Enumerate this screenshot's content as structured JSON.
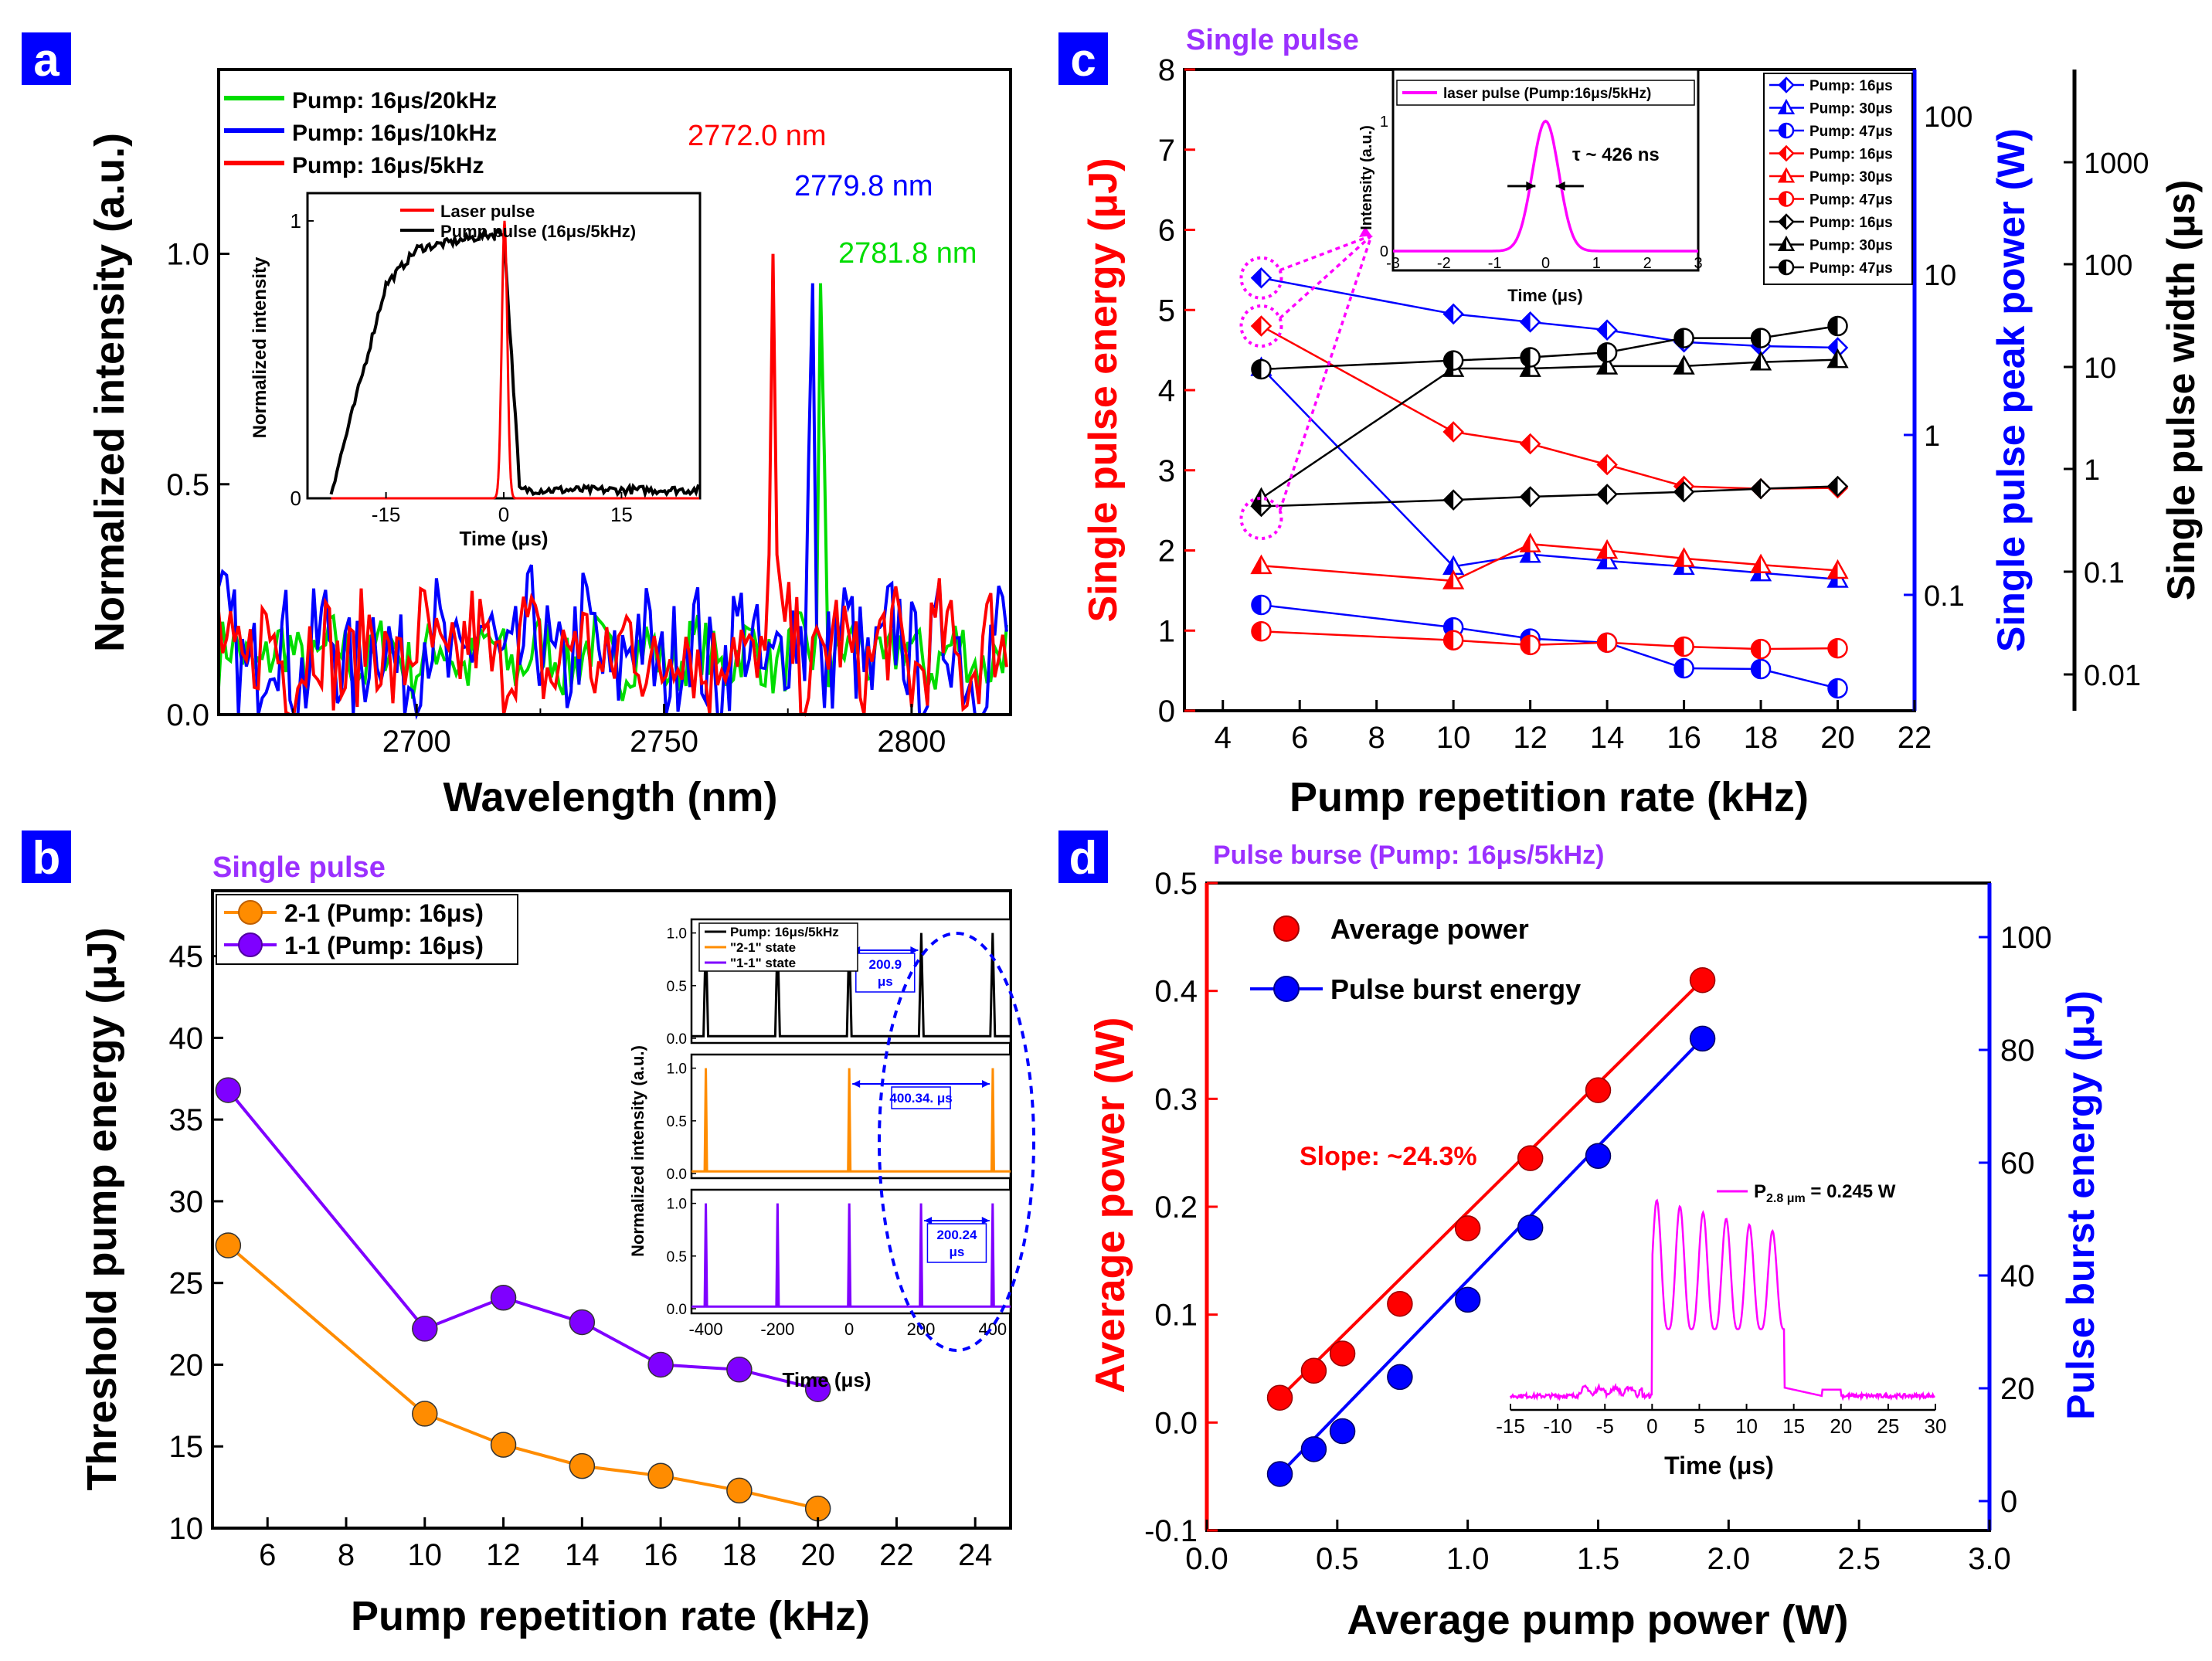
{
  "colors": {
    "red": "#ff0000",
    "blue": "#0000ff",
    "green": "#00dd00",
    "black": "#000000",
    "orange": "#ff8c00",
    "purple": "#7f00ff",
    "magenta": "#ff00ff",
    "label_purple": "#9b30ff",
    "panel_label_bg": "#0000ff"
  },
  "chart_data": [
    {
      "panel": "a",
      "type": "line",
      "xlabel": "Wavelength (nm)",
      "ylabel": "Normalized intensity (a.u.)",
      "xlim": [
        2660,
        2820
      ],
      "ylim": [
        0,
        1.4
      ],
      "xticks": [
        2700,
        2750,
        2800
      ],
      "yticks": [
        0.0,
        0.5,
        1.0
      ],
      "legend": [
        "Pump: 16μs/20kHz",
        "Pump: 16μs/10kHz",
        "Pump: 16μs/5kHz"
      ],
      "series": [
        {
          "name": "Pump: 16μs/20kHz",
          "color": "green",
          "peak": 2781.8,
          "noise": 0.1
        },
        {
          "name": "Pump: 16μs/10kHz",
          "color": "blue",
          "peak": 2779.8,
          "noise": 0.2
        },
        {
          "name": "Pump: 16μs/5kHz",
          "color": "red",
          "peak": 2772.0,
          "noise": 0.17
        }
      ],
      "annotations": [
        {
          "text": "2772.0 nm",
          "color": "red"
        },
        {
          "text": "2779.8 nm",
          "color": "blue"
        },
        {
          "text": "2781.8 nm",
          "color": "green"
        }
      ],
      "inset": {
        "xlabel": "Time (μs)",
        "ylabel": "Normalized intensity",
        "xlim": [
          -25,
          25
        ],
        "ylim": [
          0,
          1.1
        ],
        "xticks": [
          -15,
          0,
          15
        ],
        "yticks": [
          0,
          1
        ],
        "legend": [
          "Laser pulse",
          "Pump pulse (16μs/5kHz)"
        ]
      }
    },
    {
      "panel": "b",
      "type": "line",
      "title": "Single pulse",
      "xlabel": "Pump repetition rate (kHz)",
      "ylabel": "Threshold pump energy (μJ)",
      "xlim": [
        4.6,
        24.9
      ],
      "ylim": [
        10,
        49
      ],
      "xticks": [
        6,
        8,
        10,
        12,
        14,
        16,
        18,
        20,
        22,
        24
      ],
      "yticks": [
        10,
        15,
        20,
        25,
        30,
        35,
        40,
        45
      ],
      "x": [
        5,
        10,
        12,
        14,
        16,
        18,
        20
      ],
      "series": [
        {
          "name": "2-1 (Pump: 16μs)",
          "color": "orange",
          "values": [
            27.3,
            17.0,
            15.1,
            13.8,
            13.2,
            12.3,
            11.2
          ]
        },
        {
          "name": "1-1 (Pump: 16μs)",
          "color": "purple",
          "values": [
            36.8,
            22.2,
            24.1,
            22.6,
            20.0,
            19.7,
            18.5
          ]
        }
      ],
      "inset": {
        "xlabel": "Time (μs)",
        "ylabel": "Normalized intensity (a.u.)",
        "xlim": [
          -440,
          450
        ],
        "xticks": [
          -400,
          -200,
          0,
          200,
          400
        ],
        "yticks": [
          0.0,
          0.5,
          1.0
        ],
        "legend": [
          "Pump: 16μs/5kHz",
          "\"2-1\" state",
          "\"1-1\" state"
        ],
        "labels": [
          "200.9 μs",
          "400.34. μs",
          "200.24 μs"
        ]
      }
    },
    {
      "panel": "c",
      "type": "line",
      "title": "Single pulse",
      "xlabel": "Pump repetition rate (kHz)",
      "ylabel": "Single pulse energy (μJ)",
      "ylabel_right": "Single pulse peak power (W)",
      "ylabel_far": "Single pulse width (μs)",
      "xlim": [
        3,
        22
      ],
      "ylim": [
        0,
        8
      ],
      "xticks": [
        4,
        6,
        8,
        10,
        12,
        14,
        16,
        18,
        20,
        22
      ],
      "yticks": [
        0,
        1,
        2,
        3,
        4,
        5,
        6,
        7,
        8
      ],
      "yticks_right": [
        "0.1",
        "1",
        "10",
        "100"
      ],
      "yticks_far": [
        "0.01",
        "0.1",
        "1",
        "10",
        "100",
        "1000"
      ],
      "x": [
        5,
        10,
        12,
        14,
        16,
        18,
        20
      ],
      "series": [
        {
          "name": "Pump: 16μs",
          "group": "power",
          "color": "blue",
          "marker": "diamond",
          "values": [
            5.4,
            4.95,
            4.85,
            4.75,
            4.6,
            4.55,
            4.53
          ]
        },
        {
          "name": "Pump: 30μs",
          "group": "power",
          "color": "blue",
          "marker": "triangle",
          "values": [
            4.28,
            1.8,
            1.95,
            1.87,
            1.8,
            1.72,
            1.64
          ]
        },
        {
          "name": "Pump: 47μs",
          "group": "power",
          "color": "blue",
          "marker": "circle",
          "values": [
            1.32,
            1.04,
            0.9,
            0.85,
            0.53,
            0.52,
            0.28
          ]
        },
        {
          "name": "Pump: 16μs",
          "group": "energy",
          "color": "red",
          "marker": "diamond",
          "values": [
            4.8,
            3.48,
            3.33,
            3.07,
            2.8,
            2.77,
            2.78
          ]
        },
        {
          "name": "Pump: 30μs",
          "group": "energy",
          "color": "red",
          "marker": "triangle",
          "values": [
            1.81,
            1.62,
            2.08,
            2.0,
            1.9,
            1.82,
            1.75
          ]
        },
        {
          "name": "Pump: 47μs",
          "group": "energy",
          "color": "red",
          "marker": "circle",
          "values": [
            0.99,
            0.88,
            0.82,
            0.85,
            0.8,
            0.77,
            0.78
          ]
        },
        {
          "name": "Pump: 16μs",
          "group": "width",
          "color": "black",
          "marker": "diamond",
          "values": [
            2.55,
            2.63,
            2.67,
            2.7,
            2.73,
            2.77,
            2.8
          ]
        },
        {
          "name": "Pump: 30μs",
          "group": "width",
          "color": "black",
          "marker": "triangle",
          "values": [
            2.65,
            4.27,
            4.27,
            4.3,
            4.3,
            4.35,
            4.38
          ]
        },
        {
          "name": "Pump: 47μs",
          "group": "width",
          "color": "black",
          "marker": "circle",
          "values": [
            4.26,
            4.37,
            4.41,
            4.47,
            4.65,
            4.65,
            4.8
          ]
        }
      ],
      "inset": {
        "legend": "laser pulse (Pump:16μs/5kHz)",
        "xlabel": "Time (μs)",
        "ylabel": "Intensity (a.u.)",
        "xlim": [
          -3,
          3
        ],
        "xticks": [
          -3,
          -2,
          -1,
          0,
          1,
          2,
          3
        ],
        "yticks": [
          0,
          1
        ],
        "annotation": "τ ~ 426 ns"
      }
    },
    {
      "panel": "d",
      "type": "scatter",
      "title": "Pulse burse (Pump: 16μs/5kHz)",
      "xlabel": "Average pump power (W)",
      "ylabel": "Average power (W)",
      "ylabel_right": "Pulse burst energy (μJ)",
      "xlim": [
        0,
        3.0
      ],
      "ylim": [
        -0.1,
        0.5
      ],
      "ylim_right": [
        0,
        110
      ],
      "xticks": [
        0.0,
        0.5,
        1.0,
        1.5,
        2.0,
        2.5,
        3.0
      ],
      "yticks": [
        -0.1,
        0.0,
        0.1,
        0.2,
        0.3,
        0.4,
        0.5
      ],
      "yticks_right": [
        0,
        20,
        40,
        60,
        80,
        100
      ],
      "x": [
        0.28,
        0.41,
        0.52,
        0.74,
        1.0,
        1.24,
        1.5,
        1.9
      ],
      "series": [
        {
          "name": "Average power",
          "color": "red",
          "values": [
            0.023,
            0.048,
            0.064,
            0.11,
            0.18,
            0.245,
            0.308,
            0.41
          ]
        },
        {
          "name": "Pulse burst energy",
          "color": "blue",
          "axis": "right",
          "values": [
            4.8,
            9.2,
            12.4,
            22,
            35.7,
            48.5,
            61.2,
            82
          ]
        }
      ],
      "annotation": "Slope: ~24.3%",
      "inset": {
        "xlabel": "Time (μs)",
        "xlim": [
          -15,
          30
        ],
        "xticks": [
          -15,
          -10,
          -5,
          0,
          5,
          10,
          15,
          20,
          25,
          30
        ],
        "label": "P",
        "label_sub": "2.8 μm",
        "label_rest": " = 0.245 W"
      }
    }
  ],
  "panel_labels": [
    "a",
    "b",
    "c",
    "d"
  ]
}
